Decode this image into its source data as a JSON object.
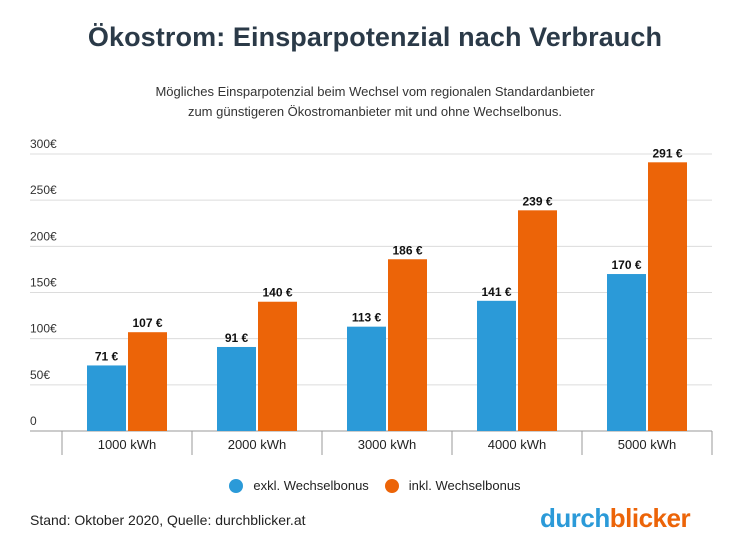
{
  "chart_data": {
    "type": "bar",
    "title": "Ökostrom: Einsparpotenzial nach Verbrauch",
    "subtitle_lines": [
      "Mögliches Einsparpotenzial beim Wechsel vom regionalen Standardanbieter",
      "zum günstigeren Ökostromanbieter mit und ohne Wechselbonus."
    ],
    "categories": [
      "1000 kWh",
      "2000 kWh",
      "3000 kWh",
      "4000 kWh",
      "5000 kWh"
    ],
    "series": [
      {
        "name": "exkl. Wechselbonus",
        "color": "#2b9ad8",
        "values": [
          71,
          91,
          113,
          141,
          170
        ],
        "labels": [
          "71 €",
          "91 €",
          "113 €",
          "141 €",
          "170 €"
        ]
      },
      {
        "name": "inkl. Wechselbonus",
        "color": "#ec6408",
        "values": [
          107,
          140,
          186,
          239,
          291
        ],
        "labels": [
          "107 €",
          "140 €",
          "186 €",
          "239 €",
          "291 €"
        ]
      }
    ],
    "ylim": [
      0,
      300
    ],
    "yticks": [
      0,
      50,
      100,
      150,
      200,
      250,
      300
    ],
    "ytick_labels": [
      "0",
      "50€",
      "100€",
      "150€",
      "200€",
      "250€",
      "300€"
    ],
    "xlabel": "",
    "ylabel": "",
    "grid": true,
    "legend_position": "bottom-center"
  },
  "footer": {
    "source": "Stand: Oktober 2020, Quelle: durchblicker.at",
    "brand_part1": "durch",
    "brand_part2": "blicker",
    "brand_color1": "#2b9ad8",
    "brand_color2": "#ec6408"
  }
}
